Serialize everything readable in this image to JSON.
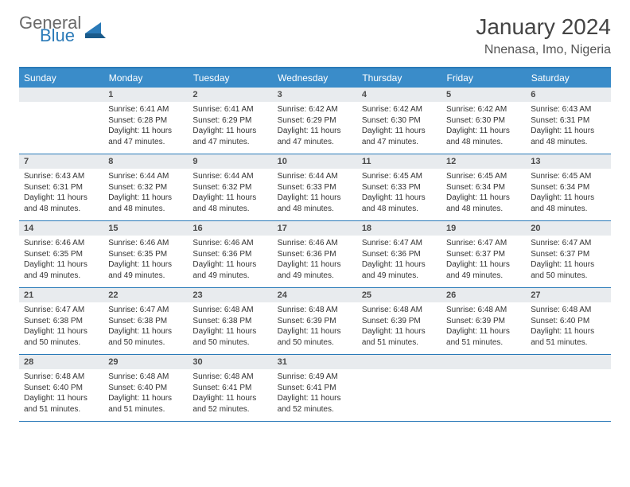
{
  "brand": {
    "part1": "General",
    "part2": "Blue"
  },
  "title": "January 2024",
  "location": "Nnenasa, Imo, Nigeria",
  "colors": {
    "header_bg": "#3a8cc9",
    "header_text": "#ffffff",
    "border": "#2a7ab8",
    "daynum_bg": "#e8ebee",
    "text": "#333333",
    "logo_gray": "#6a6a6a",
    "logo_blue": "#2a7ab8"
  },
  "weekdays": [
    "Sunday",
    "Monday",
    "Tuesday",
    "Wednesday",
    "Thursday",
    "Friday",
    "Saturday"
  ],
  "first_weekday_index": 1,
  "days": [
    {
      "n": 1,
      "sunrise": "6:41 AM",
      "sunset": "6:28 PM",
      "daylight": "11 hours and 47 minutes."
    },
    {
      "n": 2,
      "sunrise": "6:41 AM",
      "sunset": "6:29 PM",
      "daylight": "11 hours and 47 minutes."
    },
    {
      "n": 3,
      "sunrise": "6:42 AM",
      "sunset": "6:29 PM",
      "daylight": "11 hours and 47 minutes."
    },
    {
      "n": 4,
      "sunrise": "6:42 AM",
      "sunset": "6:30 PM",
      "daylight": "11 hours and 47 minutes."
    },
    {
      "n": 5,
      "sunrise": "6:42 AM",
      "sunset": "6:30 PM",
      "daylight": "11 hours and 48 minutes."
    },
    {
      "n": 6,
      "sunrise": "6:43 AM",
      "sunset": "6:31 PM",
      "daylight": "11 hours and 48 minutes."
    },
    {
      "n": 7,
      "sunrise": "6:43 AM",
      "sunset": "6:31 PM",
      "daylight": "11 hours and 48 minutes."
    },
    {
      "n": 8,
      "sunrise": "6:44 AM",
      "sunset": "6:32 PM",
      "daylight": "11 hours and 48 minutes."
    },
    {
      "n": 9,
      "sunrise": "6:44 AM",
      "sunset": "6:32 PM",
      "daylight": "11 hours and 48 minutes."
    },
    {
      "n": 10,
      "sunrise": "6:44 AM",
      "sunset": "6:33 PM",
      "daylight": "11 hours and 48 minutes."
    },
    {
      "n": 11,
      "sunrise": "6:45 AM",
      "sunset": "6:33 PM",
      "daylight": "11 hours and 48 minutes."
    },
    {
      "n": 12,
      "sunrise": "6:45 AM",
      "sunset": "6:34 PM",
      "daylight": "11 hours and 48 minutes."
    },
    {
      "n": 13,
      "sunrise": "6:45 AM",
      "sunset": "6:34 PM",
      "daylight": "11 hours and 48 minutes."
    },
    {
      "n": 14,
      "sunrise": "6:46 AM",
      "sunset": "6:35 PM",
      "daylight": "11 hours and 49 minutes."
    },
    {
      "n": 15,
      "sunrise": "6:46 AM",
      "sunset": "6:35 PM",
      "daylight": "11 hours and 49 minutes."
    },
    {
      "n": 16,
      "sunrise": "6:46 AM",
      "sunset": "6:36 PM",
      "daylight": "11 hours and 49 minutes."
    },
    {
      "n": 17,
      "sunrise": "6:46 AM",
      "sunset": "6:36 PM",
      "daylight": "11 hours and 49 minutes."
    },
    {
      "n": 18,
      "sunrise": "6:47 AM",
      "sunset": "6:36 PM",
      "daylight": "11 hours and 49 minutes."
    },
    {
      "n": 19,
      "sunrise": "6:47 AM",
      "sunset": "6:37 PM",
      "daylight": "11 hours and 49 minutes."
    },
    {
      "n": 20,
      "sunrise": "6:47 AM",
      "sunset": "6:37 PM",
      "daylight": "11 hours and 50 minutes."
    },
    {
      "n": 21,
      "sunrise": "6:47 AM",
      "sunset": "6:38 PM",
      "daylight": "11 hours and 50 minutes."
    },
    {
      "n": 22,
      "sunrise": "6:47 AM",
      "sunset": "6:38 PM",
      "daylight": "11 hours and 50 minutes."
    },
    {
      "n": 23,
      "sunrise": "6:48 AM",
      "sunset": "6:38 PM",
      "daylight": "11 hours and 50 minutes."
    },
    {
      "n": 24,
      "sunrise": "6:48 AM",
      "sunset": "6:39 PM",
      "daylight": "11 hours and 50 minutes."
    },
    {
      "n": 25,
      "sunrise": "6:48 AM",
      "sunset": "6:39 PM",
      "daylight": "11 hours and 51 minutes."
    },
    {
      "n": 26,
      "sunrise": "6:48 AM",
      "sunset": "6:39 PM",
      "daylight": "11 hours and 51 minutes."
    },
    {
      "n": 27,
      "sunrise": "6:48 AM",
      "sunset": "6:40 PM",
      "daylight": "11 hours and 51 minutes."
    },
    {
      "n": 28,
      "sunrise": "6:48 AM",
      "sunset": "6:40 PM",
      "daylight": "11 hours and 51 minutes."
    },
    {
      "n": 29,
      "sunrise": "6:48 AM",
      "sunset": "6:40 PM",
      "daylight": "11 hours and 51 minutes."
    },
    {
      "n": 30,
      "sunrise": "6:48 AM",
      "sunset": "6:41 PM",
      "daylight": "11 hours and 52 minutes."
    },
    {
      "n": 31,
      "sunrise": "6:49 AM",
      "sunset": "6:41 PM",
      "daylight": "11 hours and 52 minutes."
    }
  ],
  "labels": {
    "sunrise": "Sunrise:",
    "sunset": "Sunset:",
    "daylight": "Daylight:"
  }
}
